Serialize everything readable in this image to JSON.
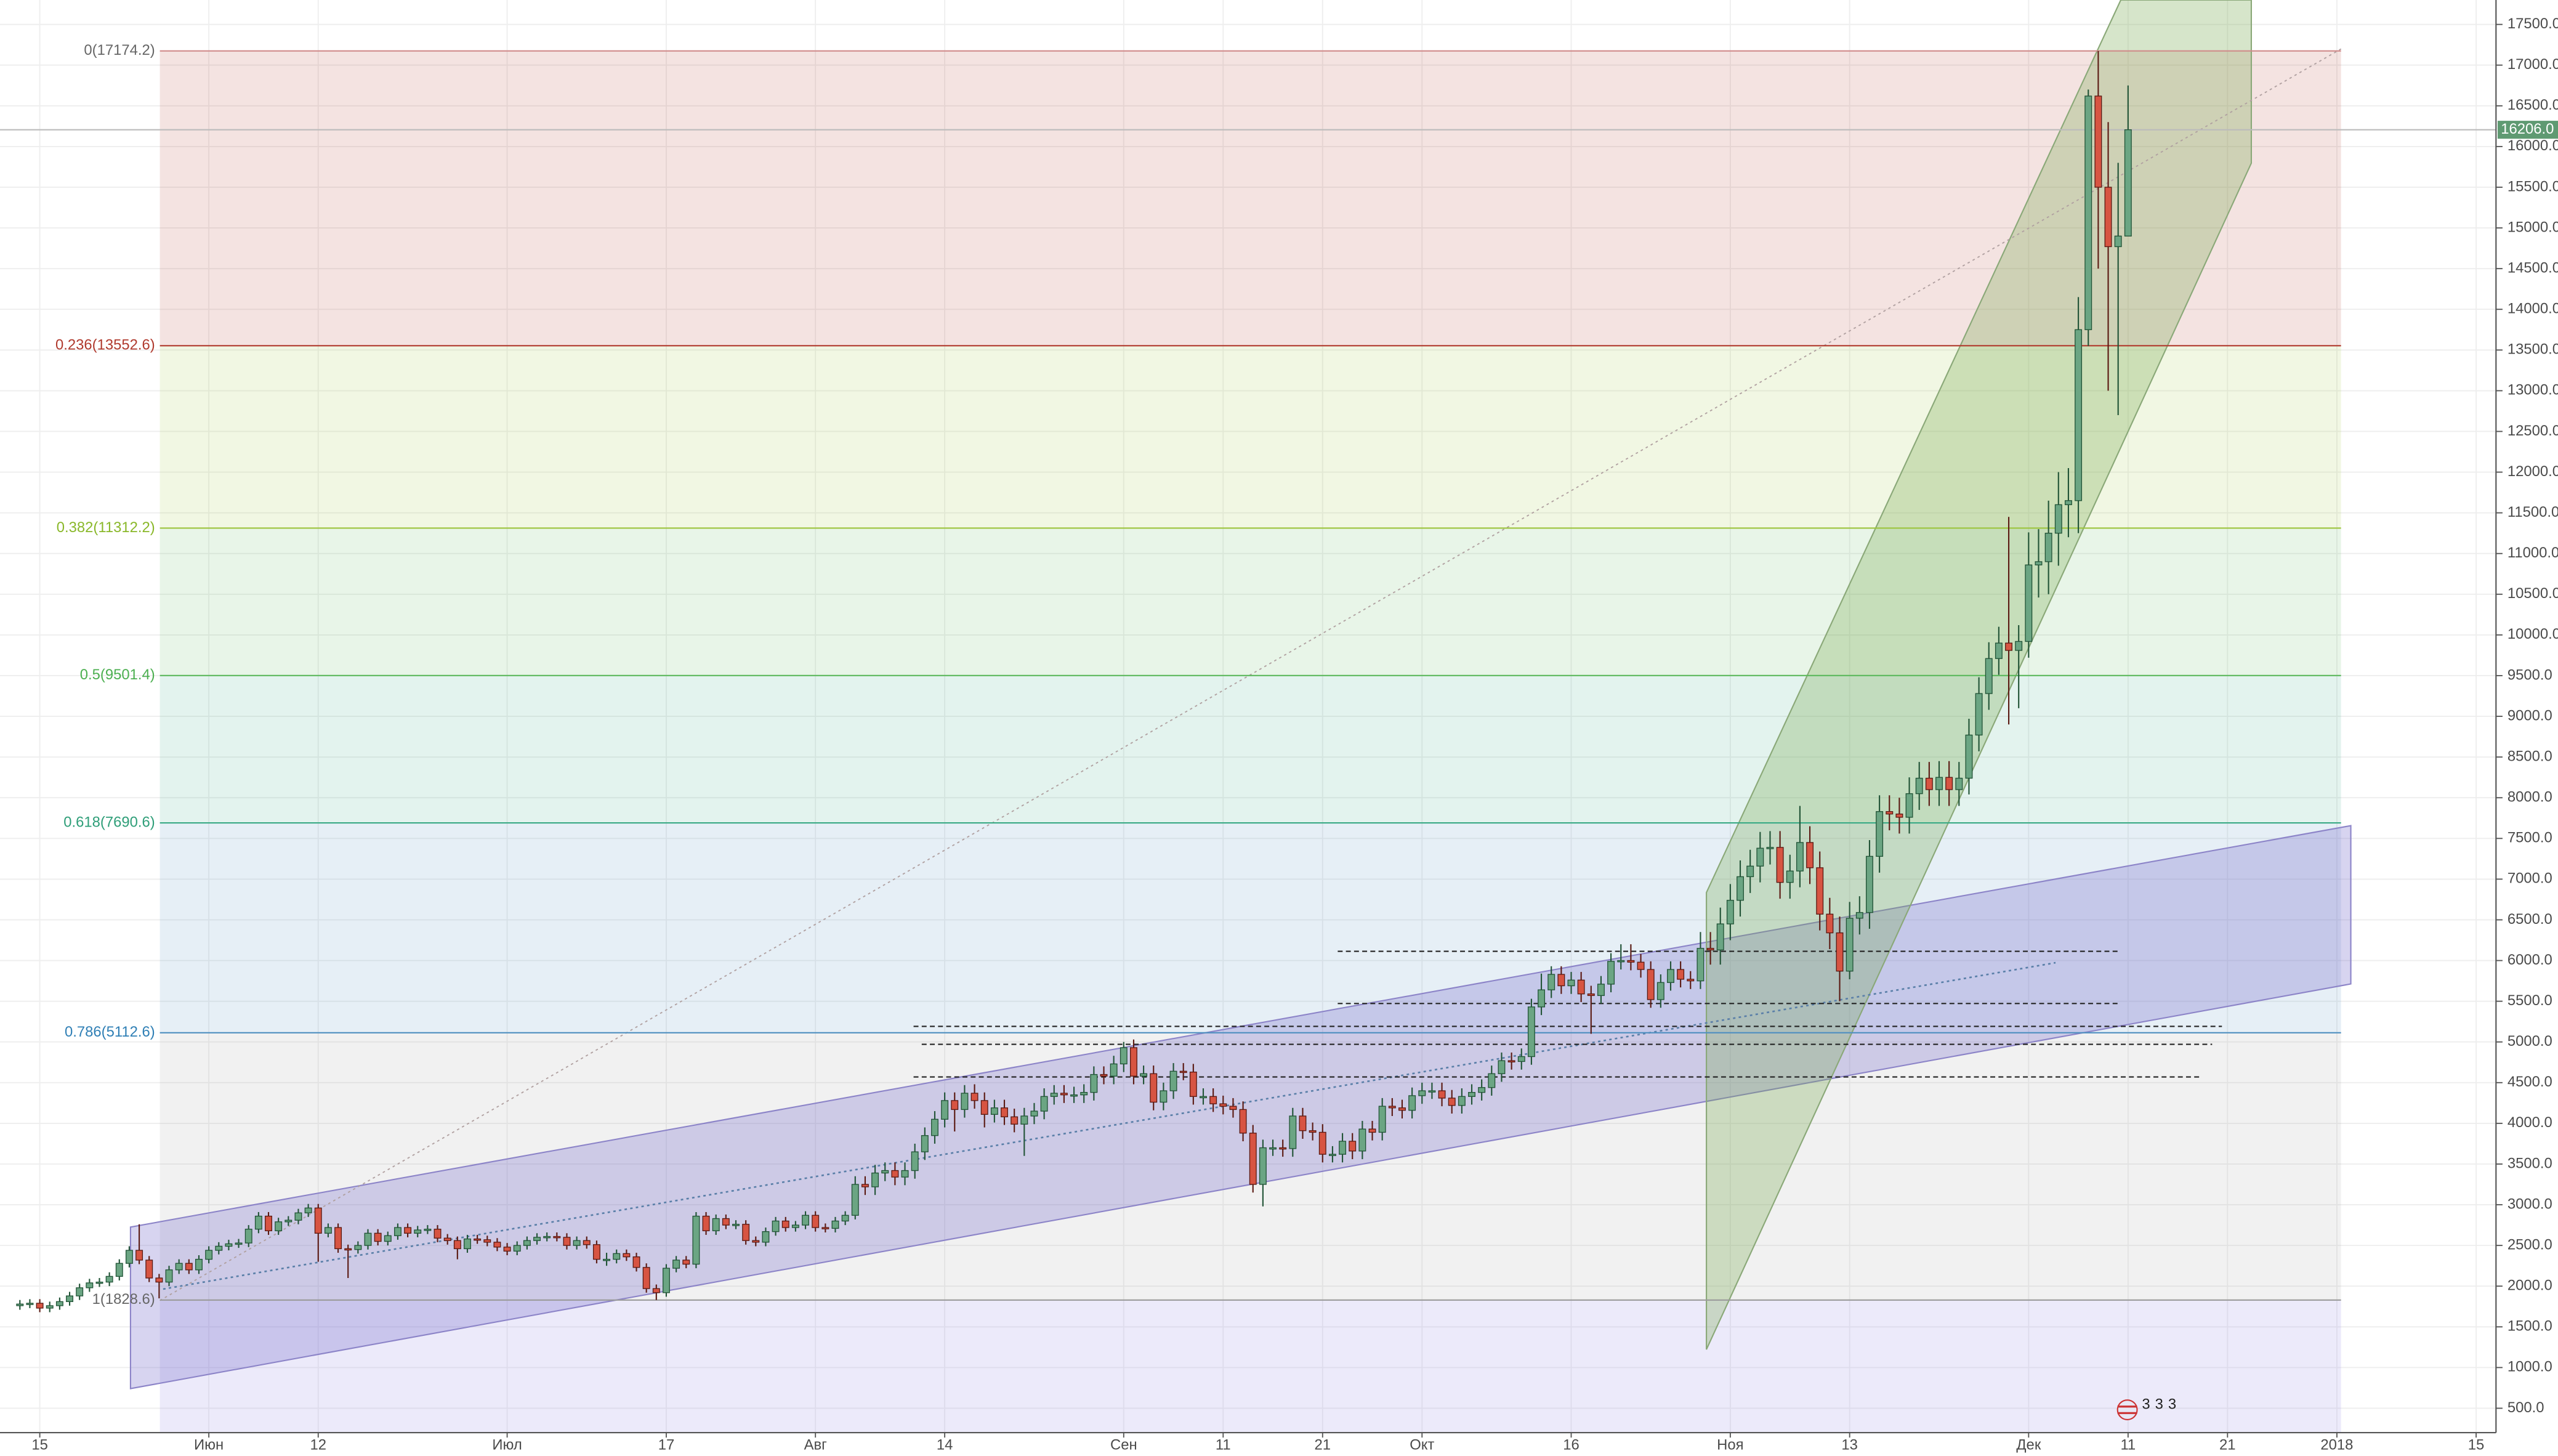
{
  "chart_data": {
    "type": "candlestick",
    "x": [
      "2017-05-13",
      "2017-05-14",
      "2017-05-15",
      "2017-05-16",
      "2017-05-17",
      "2017-05-18",
      "2017-05-19",
      "2017-05-20",
      "2017-05-21",
      "2017-05-22",
      "2017-05-23",
      "2017-05-24",
      "2017-05-25",
      "2017-05-26",
      "2017-05-27",
      "2017-05-28",
      "2017-05-29",
      "2017-05-30",
      "2017-05-31",
      "2017-06-01",
      "2017-06-02",
      "2017-06-03",
      "2017-06-04",
      "2017-06-05",
      "2017-06-06",
      "2017-06-07",
      "2017-06-08",
      "2017-06-09",
      "2017-06-10",
      "2017-06-11",
      "2017-06-12",
      "2017-06-13",
      "2017-06-14",
      "2017-06-15",
      "2017-06-16",
      "2017-06-17",
      "2017-06-18",
      "2017-06-19",
      "2017-06-20",
      "2017-06-21",
      "2017-06-22",
      "2017-06-23",
      "2017-06-24",
      "2017-06-25",
      "2017-06-26",
      "2017-06-27",
      "2017-06-28",
      "2017-06-29",
      "2017-06-30",
      "2017-07-01",
      "2017-07-02",
      "2017-07-03",
      "2017-07-04",
      "2017-07-05",
      "2017-07-06",
      "2017-07-07",
      "2017-07-08",
      "2017-07-09",
      "2017-07-10",
      "2017-07-11",
      "2017-07-12",
      "2017-07-13",
      "2017-07-14",
      "2017-07-15",
      "2017-07-16",
      "2017-07-17",
      "2017-07-18",
      "2017-07-19",
      "2017-07-20",
      "2017-07-21",
      "2017-07-22",
      "2017-07-23",
      "2017-07-24",
      "2017-07-25",
      "2017-07-26",
      "2017-07-27",
      "2017-07-28",
      "2017-07-29",
      "2017-07-30",
      "2017-07-31",
      "2017-08-01",
      "2017-08-02",
      "2017-08-03",
      "2017-08-04",
      "2017-08-05",
      "2017-08-06",
      "2017-08-07",
      "2017-08-08",
      "2017-08-09",
      "2017-08-10",
      "2017-08-11",
      "2017-08-12",
      "2017-08-13",
      "2017-08-14",
      "2017-08-15",
      "2017-08-16",
      "2017-08-17",
      "2017-08-18",
      "2017-08-19",
      "2017-08-20",
      "2017-08-21",
      "2017-08-22",
      "2017-08-23",
      "2017-08-24",
      "2017-08-25",
      "2017-08-26",
      "2017-08-27",
      "2017-08-28",
      "2017-08-29",
      "2017-08-30",
      "2017-08-31",
      "2017-09-01",
      "2017-09-02",
      "2017-09-03",
      "2017-09-04",
      "2017-09-05",
      "2017-09-06",
      "2017-09-07",
      "2017-09-08",
      "2017-09-09",
      "2017-09-10",
      "2017-09-11",
      "2017-09-12",
      "2017-09-13",
      "2017-09-14",
      "2017-09-15",
      "2017-09-16",
      "2017-09-17",
      "2017-09-18",
      "2017-09-19",
      "2017-09-20",
      "2017-09-21",
      "2017-09-22",
      "2017-09-23",
      "2017-09-24",
      "2017-09-25",
      "2017-09-26",
      "2017-09-27",
      "2017-09-28",
      "2017-09-29",
      "2017-09-30",
      "2017-10-01",
      "2017-10-02",
      "2017-10-03",
      "2017-10-04",
      "2017-10-05",
      "2017-10-06",
      "2017-10-07",
      "2017-10-08",
      "2017-10-09",
      "2017-10-10",
      "2017-10-11",
      "2017-10-12",
      "2017-10-13",
      "2017-10-14",
      "2017-10-15",
      "2017-10-16",
      "2017-10-17",
      "2017-10-18",
      "2017-10-19",
      "2017-10-20",
      "2017-10-21",
      "2017-10-22",
      "2017-10-23",
      "2017-10-24",
      "2017-10-25",
      "2017-10-26",
      "2017-10-27",
      "2017-10-28",
      "2017-10-29",
      "2017-10-30",
      "2017-10-31",
      "2017-11-01",
      "2017-11-02",
      "2017-11-03",
      "2017-11-04",
      "2017-11-05",
      "2017-11-06",
      "2017-11-07",
      "2017-11-08",
      "2017-11-09",
      "2017-11-10",
      "2017-11-11",
      "2017-11-12",
      "2017-11-13",
      "2017-11-14",
      "2017-11-15",
      "2017-11-16",
      "2017-11-17",
      "2017-11-18",
      "2017-11-19",
      "2017-11-20",
      "2017-11-21",
      "2017-11-22",
      "2017-11-23",
      "2017-11-24",
      "2017-11-25",
      "2017-11-26",
      "2017-11-27",
      "2017-11-28",
      "2017-11-29",
      "2017-11-30",
      "2017-12-01",
      "2017-12-02",
      "2017-12-03",
      "2017-12-04",
      "2017-12-05",
      "2017-12-06",
      "2017-12-07",
      "2017-12-08",
      "2017-12-09",
      "2017-12-10",
      "2017-12-11"
    ],
    "open": [
      1760,
      1780,
      1790,
      1730,
      1760,
      1810,
      1880,
      1980,
      2040,
      2050,
      2120,
      2280,
      2440,
      2320,
      2100,
      2050,
      2200,
      2280,
      2200,
      2330,
      2440,
      2490,
      2520,
      2530,
      2700,
      2860,
      2680,
      2790,
      2810,
      2900,
      2960,
      2650,
      2720,
      2460,
      2450,
      2500,
      2650,
      2550,
      2620,
      2720,
      2650,
      2690,
      2700,
      2590,
      2560,
      2460,
      2580,
      2570,
      2540,
      2480,
      2430,
      2500,
      2560,
      2600,
      2610,
      2600,
      2500,
      2560,
      2510,
      2330,
      2330,
      2400,
      2360,
      2230,
      1970,
      1920,
      2220,
      2320,
      2270,
      2860,
      2680,
      2830,
      2750,
      2760,
      2560,
      2540,
      2670,
      2800,
      2720,
      2750,
      2870,
      2720,
      2710,
      2800,
      2870,
      3250,
      3220,
      3390,
      3420,
      3340,
      3420,
      3650,
      3850,
      4050,
      4280,
      4170,
      4370,
      4280,
      4110,
      4190,
      4080,
      3990,
      4090,
      4150,
      4330,
      4370,
      4350,
      4350,
      4380,
      4600,
      4580,
      4730,
      4930,
      4580,
      4610,
      4260,
      4400,
      4640,
      4630,
      4330,
      4330,
      4240,
      4210,
      4170,
      3880,
      3250,
      3700,
      3700,
      3690,
      4090,
      3910,
      3890,
      3620,
      3620,
      3780,
      3660,
      3930,
      3890,
      4210,
      4190,
      4160,
      4340,
      4400,
      4400,
      4310,
      4220,
      4330,
      4380,
      4440,
      4610,
      4770,
      4760,
      4820,
      5430,
      5640,
      5830,
      5690,
      5760,
      5590,
      5570,
      5710,
      5990,
      6000,
      5980,
      5890,
      5520,
      5730,
      5890,
      5770,
      5750,
      6150,
      6130,
      6450,
      6740,
      7030,
      7160,
      7380,
      7390,
      6960,
      7100,
      7450,
      7140,
      6570,
      6340,
      5870,
      6520,
      6590,
      7280,
      7830,
      7800,
      7760,
      8050,
      8240,
      8100,
      8250,
      8100,
      8240,
      8770,
      9280,
      9710,
      9900,
      9810,
      9920,
      10860,
      10900,
      11250,
      11600,
      11650,
      13750,
      16620,
      15500,
      14770,
      14900
    ],
    "high": [
      1830,
      1840,
      1840,
      1810,
      1860,
      1930,
      2030,
      2090,
      2100,
      2170,
      2330,
      2490,
      2760,
      2370,
      2150,
      2250,
      2330,
      2330,
      2380,
      2490,
      2540,
      2570,
      2580,
      2750,
      2910,
      2910,
      2840,
      2860,
      2950,
      3010,
      3010,
      2770,
      2770,
      2510,
      2550,
      2700,
      2700,
      2670,
      2770,
      2770,
      2740,
      2750,
      2750,
      2640,
      2610,
      2630,
      2630,
      2620,
      2590,
      2530,
      2550,
      2610,
      2650,
      2660,
      2660,
      2650,
      2610,
      2610,
      2560,
      2410,
      2450,
      2450,
      2410,
      2280,
      2020,
      2270,
      2370,
      2370,
      2910,
      2910,
      2880,
      2880,
      2810,
      2810,
      2610,
      2720,
      2850,
      2850,
      2800,
      2920,
      2920,
      2770,
      2850,
      2920,
      3350,
      3350,
      3490,
      3520,
      3520,
      3520,
      3750,
      3950,
      4150,
      4380,
      4380,
      4470,
      4480,
      4380,
      4290,
      4290,
      4180,
      4190,
      4250,
      4430,
      4470,
      4470,
      4450,
      4480,
      4700,
      4700,
      4830,
      5000,
      5030,
      4710,
      4710,
      4500,
      4740,
      4740,
      4730,
      4430,
      4430,
      4340,
      4310,
      4270,
      3980,
      3800,
      3800,
      3800,
      4190,
      4190,
      4010,
      3990,
      3720,
      3880,
      3880,
      4030,
      4030,
      4310,
      4310,
      4290,
      4440,
      4500,
      4500,
      4500,
      4410,
      4430,
      4480,
      4540,
      4710,
      4870,
      4870,
      4920,
      5530,
      5840,
      5930,
      5930,
      5860,
      5860,
      5690,
      5810,
      6090,
      6200,
      6200,
      6080,
      5990,
      5830,
      5990,
      5990,
      5870,
      6350,
      6350,
      6650,
      6940,
      7230,
      7360,
      7580,
      7590,
      7590,
      7300,
      7900,
      7650,
      7340,
      6770,
      6540,
      6720,
      6790,
      7480,
      8030,
      8030,
      8000,
      8250,
      8440,
      8440,
      8450,
      8450,
      8440,
      8970,
      9480,
      9910,
      10100,
      11450,
      10120,
      11260,
      11300,
      11650,
      12000,
      12050,
      14150,
      16700,
      17174.2,
      16300,
      15800,
      16750
    ],
    "low": [
      1710,
      1730,
      1680,
      1680,
      1710,
      1760,
      1830,
      1930,
      1990,
      2000,
      2070,
      2230,
      2270,
      2050,
      1850,
      2000,
      2150,
      2150,
      2150,
      2280,
      2390,
      2440,
      2470,
      2480,
      2650,
      2630,
      2630,
      2740,
      2760,
      2850,
      2300,
      2600,
      2410,
      2100,
      2400,
      2450,
      2500,
      2500,
      2570,
      2600,
      2600,
      2640,
      2540,
      2510,
      2330,
      2410,
      2520,
      2490,
      2430,
      2380,
      2380,
      2450,
      2510,
      2550,
      2550,
      2450,
      2450,
      2460,
      2280,
      2250,
      2280,
      2310,
      2180,
      1920,
      1830,
      1870,
      2170,
      2220,
      2220,
      2630,
      2630,
      2700,
      2700,
      2510,
      2490,
      2490,
      2620,
      2670,
      2670,
      2700,
      2670,
      2660,
      2660,
      2750,
      2820,
      3120,
      3120,
      3290,
      3240,
      3240,
      3320,
      3550,
      3750,
      3950,
      3900,
      4070,
      4180,
      3950,
      4010,
      3980,
      3890,
      3600,
      3990,
      4050,
      4230,
      4250,
      4250,
      4250,
      4280,
      4480,
      4480,
      4630,
      4480,
      4480,
      4160,
      4160,
      4300,
      4530,
      4230,
      4230,
      4140,
      4110,
      4070,
      3780,
      3150,
      2980,
      3600,
      3590,
      3590,
      3810,
      3790,
      3520,
      3520,
      3520,
      3560,
      3560,
      3790,
      3790,
      4090,
      4060,
      4060,
      4240,
      4300,
      4210,
      4120,
      4120,
      4230,
      4280,
      4340,
      4510,
      4660,
      4660,
      4720,
      5330,
      5540,
      5590,
      5590,
      5490,
      5100,
      5470,
      5610,
      5890,
      5880,
      5790,
      5420,
      5420,
      5630,
      5670,
      5650,
      5650,
      5950,
      5950,
      6250,
      6540,
      6830,
      6960,
      7180,
      6760,
      6760,
      6900,
      6940,
      6370,
      6140,
      5500,
      5770,
      6320,
      6390,
      7080,
      7600,
      7560,
      7560,
      7850,
      7900,
      7900,
      7900,
      7900,
      8040,
      8570,
      9080,
      9510,
      8900,
      9100,
      9720,
      10460,
      10500,
      10850,
      11200,
      11250,
      13550,
      14500,
      13000,
      12700,
      14900
    ],
    "close": [
      1780,
      1790,
      1730,
      1760,
      1810,
      1880,
      1980,
      2040,
      2050,
      2120,
      2280,
      2440,
      2320,
      2100,
      2050,
      2200,
      2280,
      2200,
      2330,
      2440,
      2490,
      2520,
      2530,
      2700,
      2860,
      2680,
      2790,
      2810,
      2900,
      2960,
      2650,
      2720,
      2460,
      2450,
      2500,
      2650,
      2550,
      2620,
      2720,
      2650,
      2690,
      2700,
      2590,
      2560,
      2460,
      2580,
      2570,
      2540,
      2480,
      2430,
      2500,
      2560,
      2600,
      2610,
      2600,
      2500,
      2560,
      2510,
      2330,
      2330,
      2400,
      2360,
      2230,
      1970,
      1920,
      2220,
      2320,
      2270,
      2860,
      2680,
      2830,
      2750,
      2760,
      2560,
      2540,
      2670,
      2800,
      2720,
      2750,
      2870,
      2720,
      2710,
      2800,
      2870,
      3250,
      3220,
      3390,
      3420,
      3340,
      3420,
      3650,
      3850,
      4050,
      4280,
      4170,
      4370,
      4280,
      4110,
      4190,
      4080,
      3990,
      4090,
      4150,
      4330,
      4370,
      4350,
      4350,
      4380,
      4600,
      4580,
      4730,
      4930,
      4580,
      4610,
      4260,
      4400,
      4640,
      4630,
      4330,
      4330,
      4240,
      4210,
      4170,
      3880,
      3250,
      3700,
      3700,
      3690,
      4090,
      3910,
      3890,
      3620,
      3620,
      3780,
      3660,
      3930,
      3890,
      4210,
      4190,
      4160,
      4340,
      4400,
      4400,
      4310,
      4220,
      4330,
      4380,
      4440,
      4610,
      4770,
      4760,
      4820,
      5430,
      5640,
      5830,
      5690,
      5760,
      5590,
      5570,
      5710,
      5990,
      6000,
      5980,
      5890,
      5520,
      5730,
      5890,
      5770,
      5750,
      6150,
      6130,
      6450,
      6740,
      7030,
      7160,
      7380,
      7390,
      6960,
      7100,
      7450,
      7140,
      6570,
      6340,
      5870,
      6520,
      6590,
      7280,
      7830,
      7800,
      7760,
      8050,
      8240,
      8100,
      8250,
      8100,
      8240,
      8770,
      9280,
      9710,
      9900,
      9810,
      9920,
      10860,
      10900,
      11250,
      11600,
      11650,
      13750,
      16620,
      15500,
      14770,
      14900,
      16206
    ],
    "up_color": "#6ba583",
    "down_color": "#d75442",
    "xlim": [
      "2017-05-11",
      "2018-01-17"
    ],
    "xticks": [
      {
        "value": "2017-05-15",
        "label": "15"
      },
      {
        "value": "2017-06-01",
        "label": "Июн"
      },
      {
        "value": "2017-06-12",
        "label": "12"
      },
      {
        "value": "2017-07-01",
        "label": "Июл"
      },
      {
        "value": "2017-07-17",
        "label": "17"
      },
      {
        "value": "2017-08-01",
        "label": "Авг"
      },
      {
        "value": "2017-08-14",
        "label": "14"
      },
      {
        "value": "2017-09-01",
        "label": "Сен"
      },
      {
        "value": "2017-09-11",
        "label": "11"
      },
      {
        "value": "2017-09-21",
        "label": "21"
      },
      {
        "value": "2017-10-01",
        "label": "Окт"
      },
      {
        "value": "2017-10-16",
        "label": "16"
      },
      {
        "value": "2017-11-01",
        "label": "Ноя"
      },
      {
        "value": "2017-11-13",
        "label": "13"
      },
      {
        "value": "2017-12-01",
        "label": "Дек"
      },
      {
        "value": "2017-12-11",
        "label": "11"
      },
      {
        "value": "2017-12-21",
        "label": "21"
      },
      {
        "value": "2018-01-01",
        "label": "2018"
      },
      {
        "value": "2018-01-15",
        "label": "15"
      }
    ],
    "ylim": [
      200,
      17800
    ],
    "yticks": [
      {
        "value": 500,
        "label": "500.0"
      },
      {
        "value": 1000,
        "label": "1000.0"
      },
      {
        "value": 1500,
        "label": "1500.0"
      },
      {
        "value": 2000,
        "label": "2000.0"
      },
      {
        "value": 2500,
        "label": "2500.0"
      },
      {
        "value": 3000,
        "label": "3000.0"
      },
      {
        "value": 3500,
        "label": "3500.0"
      },
      {
        "value": 4000,
        "label": "4000.0"
      },
      {
        "value": 4500,
        "label": "4500.0"
      },
      {
        "value": 5000,
        "label": "5000.0"
      },
      {
        "value": 5500,
        "label": "5500.0"
      },
      {
        "value": 6000,
        "label": "6000.0"
      },
      {
        "value": 6500,
        "label": "6500.0"
      },
      {
        "value": 7000,
        "label": "7000.0"
      },
      {
        "value": 7500,
        "label": "7500.0"
      },
      {
        "value": 8000,
        "label": "8000.0"
      },
      {
        "value": 8500,
        "label": "8500.0"
      },
      {
        "value": 9000,
        "label": "9000.0"
      },
      {
        "value": 9500,
        "label": "9500.0"
      },
      {
        "value": 10000,
        "label": "10000.0"
      },
      {
        "value": 10500,
        "label": "10500.0"
      },
      {
        "value": 11000,
        "label": "11000.0"
      },
      {
        "value": 11500,
        "label": "11500.0"
      },
      {
        "value": 12000,
        "label": "12000.0"
      },
      {
        "value": 12500,
        "label": "12500.0"
      },
      {
        "value": 13000,
        "label": "13000.0"
      },
      {
        "value": 13500,
        "label": "13500.0"
      },
      {
        "value": 14000,
        "label": "14000.0"
      },
      {
        "value": 14500,
        "label": "14500.0"
      },
      {
        "value": 15000,
        "label": "15000.0"
      },
      {
        "value": 15500,
        "label": "15500.0"
      },
      {
        "value": 16000,
        "label": "16000.0"
      },
      {
        "value": 16500,
        "label": "16500.0"
      },
      {
        "value": 17000,
        "label": "17000.0"
      },
      {
        "value": 17500,
        "label": "17500.0"
      }
    ],
    "grid": true,
    "fib_levels": [
      {
        "label": "0(17174.2)",
        "value": 17174.2,
        "color": "#d08a8a",
        "text_color": "#666666"
      },
      {
        "label": "0.236(13552.6)",
        "value": 13552.6,
        "color": "#b03a2e",
        "text_color": "#b03a2e"
      },
      {
        "label": "0.382(11312.2)",
        "value": 11312.2,
        "color": "#9cc43c",
        "text_color": "#8ab82a"
      },
      {
        "label": "0.5(9501.4)",
        "value": 9501.4,
        "color": "#5cb85c",
        "text_color": "#4caf50"
      },
      {
        "label": "0.618(7690.6)",
        "value": 7690.6,
        "color": "#3aaa85",
        "text_color": "#2e9e78"
      },
      {
        "label": "0.786(5112.6)",
        "value": 5112.6,
        "color": "#4f8fc0",
        "text_color": "#2f7fb5"
      },
      {
        "label": "1(1828.6)",
        "value": 1828.6,
        "color": "#9a9a9a",
        "text_color": "#666666"
      }
    ],
    "last_price": {
      "value": 16206,
      "label": "16206.0",
      "color": "#5f9a72"
    },
    "event_marks": [
      "3",
      "3",
      "3"
    ]
  }
}
